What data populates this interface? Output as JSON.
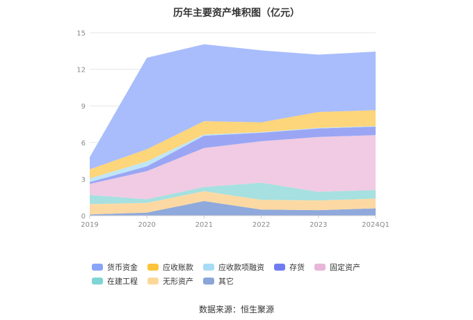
{
  "chart_data": {
    "type": "area",
    "stacked": true,
    "title": "历年主要资产堆积图（亿元）",
    "categories": [
      "2019",
      "2020",
      "2021",
      "2022",
      "2023",
      "2024Q1"
    ],
    "ylim": [
      0,
      15
    ],
    "yticks": [
      "0",
      "3",
      "6",
      "9",
      "12",
      "15"
    ],
    "grid": true,
    "legend_position": "bottom",
    "series": [
      {
        "name": "其它",
        "color": "#8fa9dc",
        "values": [
          0.1,
          0.25,
          1.2,
          0.5,
          0.45,
          0.6
        ]
      },
      {
        "name": "无形资产",
        "color": "#fcd9a3",
        "values": [
          0.85,
          0.8,
          0.8,
          0.8,
          0.8,
          0.8
        ]
      },
      {
        "name": "在建工程",
        "color": "#a6e0e0",
        "values": [
          0.75,
          0.3,
          0.35,
          1.4,
          0.7,
          0.7
        ]
      },
      {
        "name": "固定资产",
        "color": "#f0cbe3",
        "values": [
          0.9,
          2.3,
          3.2,
          3.4,
          4.5,
          4.5
        ]
      },
      {
        "name": "存货",
        "color": "#9aa6f4",
        "values": [
          0.15,
          0.4,
          1.0,
          0.7,
          0.7,
          0.7
        ]
      },
      {
        "name": "应收款项融资",
        "color": "#bfe5f7",
        "values": [
          0.3,
          0.4,
          0.1,
          0.05,
          0.05,
          0.05
        ]
      },
      {
        "name": "应收账款",
        "color": "#fdd57a",
        "values": [
          0.75,
          1.0,
          1.1,
          0.8,
          1.3,
          1.3
        ]
      },
      {
        "name": "货币资金",
        "color": "#a9bdfc",
        "values": [
          1.0,
          7.5,
          6.3,
          5.9,
          4.7,
          4.8
        ]
      }
    ]
  },
  "legend": [
    {
      "label": "货币资金",
      "color": "#8aa4f8"
    },
    {
      "label": "应收账款",
      "color": "#fcc33c"
    },
    {
      "label": "应收款项融资",
      "color": "#a6dcf5"
    },
    {
      "label": "存货",
      "color": "#6f7cf0"
    },
    {
      "label": "固定资产",
      "color": "#e8b6d8"
    },
    {
      "label": "在建工程",
      "color": "#7fd4d4"
    },
    {
      "label": "无形资产",
      "color": "#fbd899"
    },
    {
      "label": "其它",
      "color": "#8aa6d8"
    }
  ],
  "source": "数据来源：恒生聚源"
}
